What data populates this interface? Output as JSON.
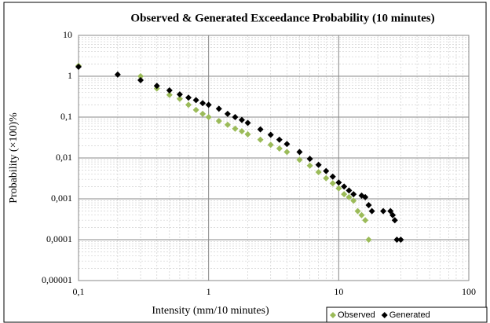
{
  "chart_data": {
    "type": "scatter",
    "title": "Observed & Generated Exceedance Probability (10 minutes)",
    "xlabel": "Intensity (mm/10 minutes)",
    "ylabel": "Probability  (×100)%",
    "xscale": "log",
    "yscale": "log",
    "grid": true,
    "minor_grid": true,
    "legend": "bottom right",
    "xlim": [
      0.1,
      100
    ],
    "xticks": [
      {
        "value": 0.1,
        "label": "0,1"
      },
      1,
      10,
      100
    ],
    "ylim": [
      1e-05,
      10
    ],
    "yticks": [
      {
        "value": 1e-05,
        "label": "0,00001"
      },
      {
        "value": 0.0001,
        "label": "0,0001"
      },
      {
        "value": 0.001,
        "label": "0,001"
      },
      {
        "value": 0.01,
        "label": "0,01"
      },
      {
        "value": 0.1,
        "label": "0,1"
      },
      1,
      10
    ],
    "series": [
      {
        "name": "Observed",
        "color": "#9bbb59",
        "x": [
          0.1,
          0.3,
          0.4,
          0.5,
          0.6,
          0.7,
          0.8,
          0.9,
          1,
          1.2,
          1.4,
          1.6,
          1.8,
          2,
          2.5,
          3,
          3.5,
          4,
          5,
          6,
          7,
          8,
          9,
          10,
          11,
          12,
          13,
          14,
          15,
          16,
          17
        ],
        "y": [
          1.8,
          1.0,
          0.5,
          0.35,
          0.28,
          0.2,
          0.15,
          0.12,
          0.1,
          0.08,
          0.065,
          0.052,
          0.045,
          0.038,
          0.028,
          0.021,
          0.017,
          0.014,
          0.009,
          0.0065,
          0.0045,
          0.0032,
          0.0024,
          0.0018,
          0.0013,
          0.0011,
          0.0009,
          0.0005,
          0.0004,
          0.0003,
          0.0001
        ]
      },
      {
        "name": "Generated",
        "color": "#000000",
        "x": [
          0.1,
          0.2,
          0.3,
          0.4,
          0.5,
          0.6,
          0.7,
          0.8,
          0.9,
          1,
          1.2,
          1.4,
          1.6,
          1.8,
          2,
          2.5,
          3,
          3.5,
          4,
          5,
          6,
          7,
          8,
          9,
          10,
          11,
          12,
          13,
          15,
          16,
          17,
          18,
          22,
          25,
          26,
          27,
          28,
          30
        ],
        "y": [
          1.7,
          1.1,
          0.8,
          0.58,
          0.45,
          0.36,
          0.3,
          0.26,
          0.22,
          0.2,
          0.16,
          0.12,
          0.1,
          0.085,
          0.072,
          0.05,
          0.037,
          0.028,
          0.022,
          0.014,
          0.0095,
          0.0068,
          0.0048,
          0.0035,
          0.0025,
          0.002,
          0.0016,
          0.0013,
          0.0012,
          0.0011,
          0.0007,
          0.0005,
          0.0005,
          0.0005,
          0.0004,
          0.0003,
          0.0001,
          0.0001
        ]
      }
    ]
  }
}
